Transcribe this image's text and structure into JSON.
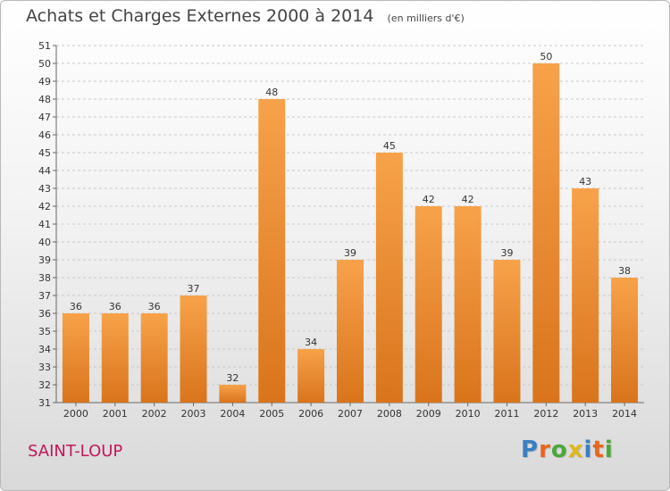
{
  "header": {
    "title": "Achats et Charges Externes 2000 à 2014",
    "subtitle": "(en milliers d'€)"
  },
  "footer": {
    "place": "SAINT-LOUP",
    "logo": "Proxiti"
  },
  "colors": {
    "bar_top": "#f7a24a",
    "bar_bottom": "#d9741c",
    "place": "#c2185b",
    "logo_letters": [
      "#3a7fc1",
      "#e8661f",
      "#4aa83a",
      "#e0b81e",
      "#3a7fc1",
      "#e8661f",
      "#4aa83a"
    ]
  },
  "chart_data": {
    "type": "bar",
    "title": "Achats et Charges Externes 2000 à 2014",
    "subtitle": "(en milliers d'€)",
    "categories": [
      "2000",
      "2001",
      "2002",
      "2003",
      "2004",
      "2005",
      "2006",
      "2007",
      "2008",
      "2009",
      "2010",
      "2011",
      "2012",
      "2013",
      "2014"
    ],
    "values": [
      36,
      36,
      36,
      37,
      32,
      48,
      34,
      39,
      45,
      42,
      42,
      39,
      50,
      43,
      38
    ],
    "ylim": [
      31,
      51
    ],
    "yticks": [
      31,
      32,
      33,
      34,
      35,
      36,
      37,
      38,
      39,
      40,
      41,
      42,
      43,
      44,
      45,
      46,
      47,
      48,
      49,
      50,
      51
    ],
    "grid": true,
    "xlabel": "",
    "ylabel": ""
  }
}
